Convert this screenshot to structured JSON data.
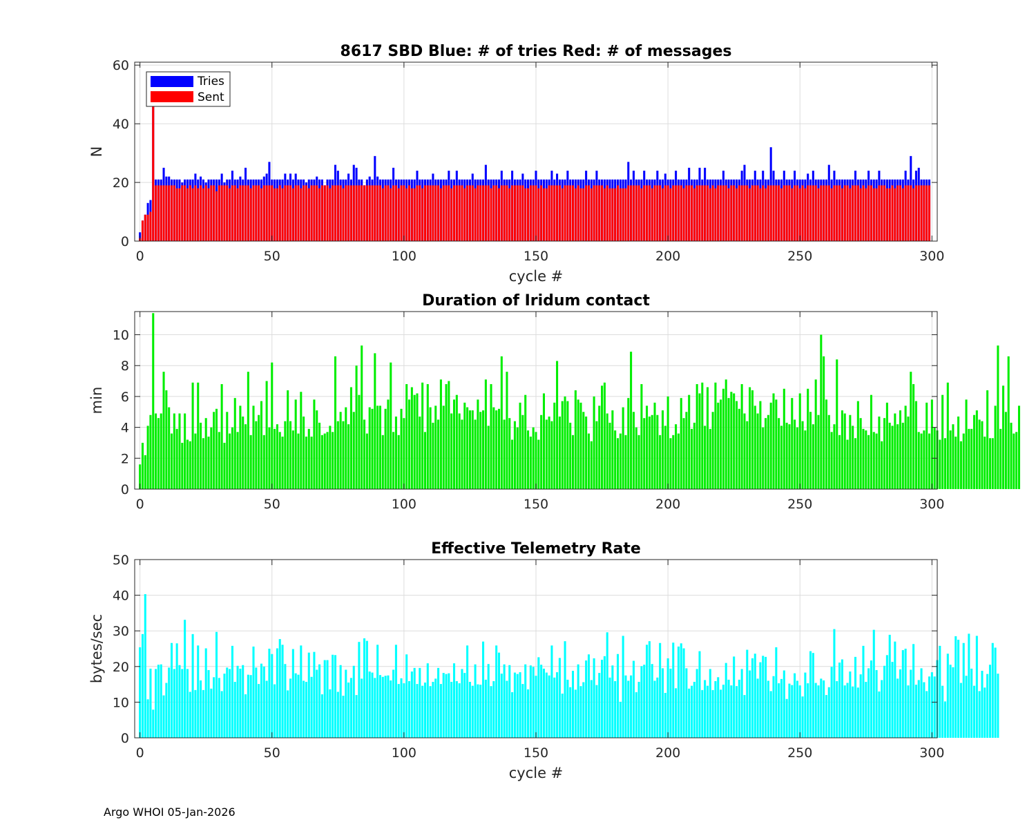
{
  "footer": "Argo WHOI 05-Jan-2026",
  "colors": {
    "tries": "#0000ff",
    "sent": "#ff0000",
    "duration": "#00ee00",
    "rate": "#00ffff"
  },
  "chart_data": [
    {
      "type": "bar",
      "title": "8617 SBD  Blue: # of tries   Red: # of messages",
      "xlabel": "cycle #",
      "ylabel": "N",
      "xlim": [
        -2,
        302
      ],
      "ylim": [
        0,
        61
      ],
      "xticks": [
        "0",
        "50",
        "100",
        "150",
        "200",
        "250",
        "300"
      ],
      "yticks": [
        "0",
        "20",
        "40",
        "60"
      ],
      "legend": {
        "position": "top-left",
        "entries": [
          "Tries",
          "Sent"
        ]
      },
      "series": [
        {
          "name": "Tries",
          "color": "#0000ff",
          "base": 21,
          "overrides": {
            "0": 3,
            "1": 7,
            "2": 9,
            "3": 13,
            "4": 14,
            "5": 47,
            "6": 21,
            "7": 21,
            "8": 21,
            "9": 25,
            "10": 22,
            "11": 22,
            "13": 21,
            "16": 20,
            "19": 21,
            "21": 23,
            "23": 22,
            "25": 20,
            "28": 21,
            "30": 21,
            "31": 23,
            "32": 20,
            "33": 21,
            "35": 24,
            "38": 22,
            "40": 25,
            "44": 21,
            "47": 22,
            "48": 23,
            "49": 27,
            "55": 23,
            "57": 23,
            "59": 23,
            "63": 20,
            "67": 22,
            "70": 19,
            "74": 26,
            "75": 24,
            "79": 23,
            "81": 26,
            "82": 25,
            "85": 19,
            "87": 22,
            "89": 29,
            "90": 22,
            "96": 25,
            "105": 24,
            "111": 23,
            "117": 24,
            "120": 24,
            "126": 23,
            "131": 26,
            "137": 24,
            "141": 24,
            "145": 23,
            "150": 24,
            "156": 24,
            "158": 23,
            "162": 24,
            "169": 24,
            "173": 24,
            "185": 27,
            "187": 24,
            "191": 24,
            "196": 24,
            "199": 23,
            "203": 24,
            "208": 25,
            "212": 25,
            "214": 25,
            "221": 24,
            "228": 24,
            "229": 26,
            "233": 24,
            "236": 24,
            "239": 32,
            "240": 24,
            "244": 24,
            "248": 24,
            "253": 23,
            "255": 24,
            "261": 26,
            "263": 24,
            "271": 24,
            "276": 24,
            "280": 24,
            "290": 24,
            "292": 29,
            "294": 24,
            "295": 25,
            "299": 21
          }
        },
        {
          "name": "Sent",
          "color": "#ff0000",
          "base": 19,
          "overrides": {
            "0": 1,
            "1": 7,
            "2": 9,
            "3": 9,
            "4": 10,
            "5": 46,
            "14": 18,
            "15": 18,
            "18": 18,
            "20": 18,
            "22": 18,
            "24": 18,
            "26": 18,
            "29": 17,
            "34": 18,
            "37": 18,
            "42": 18,
            "46": 18,
            "51": 18,
            "52": 18,
            "54": 18,
            "58": 18,
            "61": 18,
            "64": 18,
            "68": 18,
            "72": 18,
            "77": 18,
            "92": 18,
            "95": 18,
            "98": 18,
            "101": 18,
            "103": 18,
            "104": 18,
            "107": 18,
            "114": 18,
            "118": 18,
            "123": 18,
            "127": 18,
            "133": 18,
            "136": 18,
            "140": 18,
            "146": 18,
            "147": 18,
            "151": 18,
            "153": 18,
            "154": 18,
            "160": 18,
            "165": 18,
            "167": 18,
            "168": 18,
            "171": 18,
            "176": 18,
            "178": 18,
            "179": 18,
            "180": 18,
            "182": 18,
            "183": 18,
            "184": 18,
            "190": 18,
            "194": 18,
            "198": 18,
            "201": 18,
            "206": 18,
            "210": 18,
            "216": 18,
            "218": 18,
            "223": 18,
            "226": 18,
            "231": 18,
            "235": 18,
            "237": 18,
            "243": 18,
            "247": 18,
            "250": 18,
            "252": 18,
            "257": 18,
            "262": 18,
            "266": 18,
            "269": 18,
            "273": 18,
            "275": 18,
            "278": 18,
            "279": 18,
            "283": 18,
            "284": 18,
            "286": 18,
            "289": 18,
            "293": 18
          }
        }
      ]
    },
    {
      "type": "bar",
      "title": "Duration of Iridum contact",
      "xlabel": "",
      "ylabel": "min",
      "xlim": [
        -2,
        302
      ],
      "ylim": [
        0,
        11.5
      ],
      "xticks": [
        "0",
        "50",
        "100",
        "150",
        "200",
        "250",
        "300"
      ],
      "yticks": [
        "0",
        "2",
        "4",
        "6",
        "8",
        "10"
      ],
      "values": [
        1.6,
        3.0,
        2.2,
        4.1,
        4.8,
        11.4,
        4.9,
        4.6,
        4.9,
        7.6,
        6.4,
        5.3,
        3.6,
        4.9,
        3.9,
        4.9,
        3.0,
        4.9,
        3.2,
        3.1,
        6.9,
        3.6,
        6.9,
        4.3,
        3.3,
        4.6,
        3.4,
        4.0,
        5.0,
        5.2,
        3.7,
        6.8,
        3.0,
        5.0,
        3.6,
        4.0,
        5.9,
        3.7,
        5.4,
        4.7,
        4.2,
        7.6,
        3.5,
        5.4,
        4.4,
        4.8,
        5.7,
        3.5,
        7.0,
        4.0,
        8.2,
        3.9,
        4.2,
        3.7,
        3.4,
        4.4,
        6.4,
        4.4,
        3.8,
        5.8,
        3.6,
        6.3,
        4.7,
        3.4,
        3.9,
        3.4,
        5.8,
        5.1,
        4.3,
        3.5,
        3.6,
        3.7,
        4.1,
        3.7,
        8.6,
        4.4,
        5.0,
        4.4,
        5.3,
        4.2,
        6.6,
        5.0,
        8.0,
        6.1,
        9.3,
        4.5,
        3.6,
        5.3,
        5.2,
        8.8,
        5.4,
        5.4,
        3.5,
        5.2,
        5.8,
        8.2,
        3.7,
        4.7,
        3.5,
        5.2,
        4.6,
        6.8,
        5.8,
        6.6,
        6.1,
        6.2,
        4.7,
        6.9,
        3.7,
        6.8,
        5.3,
        4.3,
        5.4,
        4.5,
        7.1,
        5.4,
        6.8,
        7.0,
        4.9,
        5.8,
        6.1,
        4.9,
        4.5,
        5.6,
        5.3,
        5.1,
        5.1,
        4.5,
        5.8,
        5.0,
        5.1,
        7.1,
        4.1,
        6.8,
        5.3,
        5.1,
        5.2,
        8.6,
        4.5,
        7.6,
        4.6,
        3.2,
        4.4,
        4.0,
        5.6,
        4.8,
        6.1,
        3.8,
        3.4,
        4.0,
        3.7,
        3.2,
        4.8,
        6.2,
        4.5,
        4.7,
        4.4,
        5.6,
        8.3,
        4.7,
        5.7,
        6.0,
        5.7,
        4.3,
        3.5,
        6.4,
        5.8,
        5.6,
        5.0,
        4.7,
        3.6,
        3.1,
        6.0,
        4.4,
        5.4,
        6.7,
        6.9,
        4.9,
        4.3,
        5.1,
        3.8,
        3.3,
        3.6,
        5.3,
        3.5,
        5.9,
        8.9,
        5.0,
        4.0,
        3.5,
        6.8,
        4.6,
        5.4,
        4.7,
        4.8,
        5.6,
        4.8,
        3.5,
        5.1,
        4.1,
        6.0,
        3.3,
        3.5,
        4.2,
        3.6,
        5.9,
        4.6,
        5.0,
        6.1,
        3.9,
        4.3,
        6.8,
        6.2,
        6.9,
        4.1,
        6.6,
        3.9,
        5.0,
        6.9,
        5.6,
        5.8,
        6.5,
        7.1,
        5.9,
        6.3,
        6.2,
        5.7,
        5.2,
        6.8,
        4.9,
        4.4,
        6.6,
        6.4,
        5.4,
        4.9,
        5.7,
        4.0,
        4.6,
        4.8,
        5.6,
        6.2,
        5.8,
        4.6,
        4.1,
        6.5,
        4.3,
        4.2,
        5.9,
        4.5,
        4.0,
        6.2,
        4.4,
        3.8,
        6.5,
        5.0,
        4.2,
        7.1,
        4.8,
        10.0,
        8.6,
        5.8,
        4.8,
        3.7,
        4.2,
        8.4,
        3.5,
        5.1,
        4.9,
        3.2,
        4.8,
        4.1,
        3.3,
        5.7,
        4.6,
        3.9,
        3.8,
        3.5,
        6.1,
        3.7,
        3.6,
        4.7,
        3.1,
        4.6,
        5.6,
        4.3,
        4.1,
        4.9,
        4.2,
        5.1,
        4.3,
        5.4,
        4.7,
        7.6,
        6.8,
        5.7,
        3.7,
        3.6,
        3.8,
        5.6,
        3.6,
        5.8,
        4.0,
        3.8,
        3.2,
        6.1,
        3.3,
        6.9,
        3.8,
        4.2,
        3.4,
        4.7,
        3.1,
        3.6,
        5.8,
        3.9,
        3.9,
        4.8,
        5.1,
        4.5,
        4.4,
        3.4,
        6.4,
        3.3,
        3.3,
        5.4,
        9.3,
        3.9,
        6.7,
        5.0,
        8.6,
        4.3,
        3.6,
        3.7,
        5.4
      ]
    },
    {
      "type": "bar",
      "title": "Effective Telemetry Rate",
      "xlabel": "cycle #",
      "ylabel": "bytes/sec",
      "xlim": [
        -2,
        302
      ],
      "ylim": [
        0,
        50
      ],
      "xticks": [
        "0",
        "50",
        "100",
        "150",
        "200",
        "250",
        "300"
      ],
      "yticks": [
        "0",
        "10",
        "20",
        "30",
        "40",
        "50"
      ],
      "values": [
        25.4,
        29.1,
        40.3,
        10.8,
        19.4,
        7.9,
        19.3,
        20.5,
        20.6,
        11.9,
        15.4,
        19.7,
        26.6,
        19.3,
        26.5,
        20.4,
        19.3,
        33.1,
        19.3,
        12.9,
        29.1,
        13.4,
        25.9,
        16.1,
        13.4,
        25.1,
        19.0,
        13.8,
        17.0,
        29.7,
        16.8,
        13.1,
        18.0,
        19.7,
        19.3,
        25.8,
        15.7,
        20.2,
        19.4,
        20.4,
        12.2,
        17.7,
        17.6,
        25.6,
        19.7,
        15.1,
        20.8,
        20.0,
        16.0,
        25.0,
        23.5,
        15.0,
        25.1,
        27.7,
        26.1,
        20.7,
        13.3,
        16.6,
        24.9,
        18.1,
        17.7,
        25.9,
        16.0,
        15.7,
        23.9,
        17.1,
        24.1,
        19.1,
        20.6,
        12.2,
        21.8,
        21.8,
        13.6,
        23.3,
        23.2,
        12.9,
        20.4,
        11.8,
        19.1,
        15.5,
        16.8,
        20.2,
        12.0,
        26.9,
        16.6,
        27.9,
        27.2,
        18.6,
        18.3,
        16.8,
        26.1,
        17.6,
        17.1,
        17.4,
        17.5,
        16.1,
        19.1,
        26.1,
        15.1,
        16.7,
        15.3,
        23.4,
        15.9,
        18.6,
        19.6,
        15.1,
        19.6,
        14.6,
        15.5,
        20.9,
        14.5,
        15.7,
        16.6,
        19.6,
        15.1,
        18.2,
        17.9,
        18.1,
        15.7,
        20.9,
        15.9,
        15.3,
        19.3,
        18.2,
        25.9,
        15.7,
        14.6,
        20.6,
        15.0,
        14.9,
        27.0,
        16.3,
        20.7,
        14.5,
        15.9,
        25.9,
        23.9,
        18.0,
        20.6,
        16.0,
        20.4,
        12.8,
        18.3,
        17.9,
        18.4,
        15.1,
        20.6,
        13.6,
        20.3,
        19.9,
        17.4,
        22.6,
        20.5,
        19.4,
        18.3,
        17.5,
        25.9,
        16.9,
        18.4,
        22.4,
        12.4,
        27.1,
        16.3,
        14.2,
        18.8,
        13.5,
        20.6,
        14.5,
        15.6,
        21.7,
        23.4,
        16.2,
        22.3,
        14.8,
        18.2,
        21.9,
        22.9,
        29.6,
        16.9,
        20.3,
        15.9,
        23.5,
        10.1,
        28.6,
        17.5,
        16.0,
        17.5,
        21.6,
        12.8,
        15.7,
        20.1,
        20.5,
        26.1,
        27.1,
        20.7,
        16.0,
        16.9,
        26.6,
        19.5,
        12.6,
        22.3,
        19.4,
        26.7,
        13.9,
        25.6,
        26.5,
        25.1,
        19.5,
        13.8,
        14.6,
        15.7,
        19.3,
        24.3,
        13.4,
        16.2,
        14.6,
        19.3,
        13.4,
        15.9,
        17.0,
        13.5,
        14.9,
        21.0,
        16.3,
        14.7,
        22.8,
        14.5,
        16.3,
        19.3,
        12.0,
        24.7,
        18.9,
        22.3,
        23.6,
        16.6,
        21.2,
        23.0,
        22.7,
        16.0,
        13.1,
        17.3,
        25.4,
        15.3,
        16.5,
        18.9,
        10.9,
        15.2,
        14.8,
        18.1,
        16.0,
        14.7,
        11.6,
        18.3,
        15.3,
        24.3,
        23.8,
        15.4,
        14.7,
        16.6,
        16.1,
        12.0,
        14.2,
        19.9,
        30.5,
        15.9,
        21.1,
        22.0,
        14.7,
        15.4,
        18.6,
        14.4,
        22.7,
        14.1,
        17.8,
        25.8,
        15.7,
        19.5,
        21.7,
        30.3,
        19.0,
        13.0,
        16.2,
        20.2,
        23.2,
        28.9,
        21.3,
        27.0,
        16.6,
        19.2,
        24.6,
        25.0,
        14.7,
        19.1,
        26.3,
        14.9,
        16.2,
        19.5,
        15.6,
        13.1,
        17.2,
        18.4,
        17.2,
        21.8,
        25.8,
        14.6,
        10.2,
        23.6,
        20.5,
        19.8,
        28.5,
        27.5,
        15.4,
        26.6,
        17.4,
        29.2,
        19.4,
        14.6,
        28.6,
        13.1,
        18.8,
        14.1,
        17.9,
        20.5,
        26.6,
        25.3,
        18.0
      ]
    }
  ]
}
